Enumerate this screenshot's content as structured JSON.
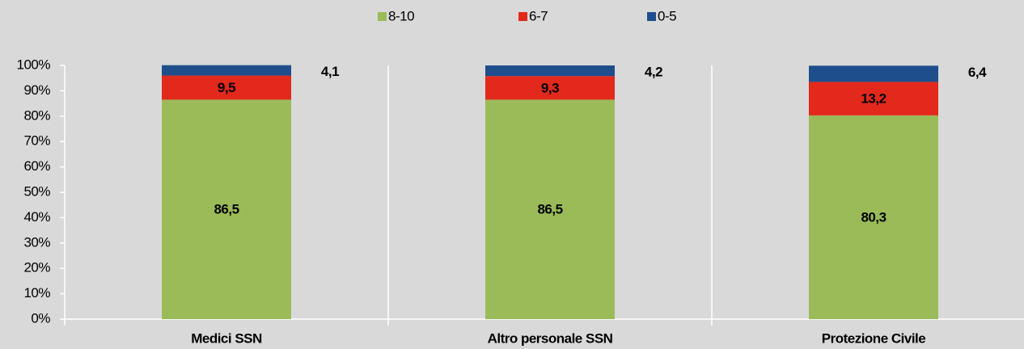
{
  "chart_data": {
    "type": "stacked_bar",
    "categories": [
      "Medici SSN",
      "Altro personale SSN",
      "Protezione Civile"
    ],
    "series": [
      {
        "name": "8-10",
        "color": "#9bbb59",
        "values": [
          86.5,
          86.5,
          80.3
        ],
        "value_labels": [
          "86,5",
          "86,5",
          "80,3"
        ]
      },
      {
        "name": "6-7",
        "color": "#e2291c",
        "values": [
          9.5,
          9.3,
          13.2
        ],
        "value_labels": [
          "9,5",
          "9,3",
          "13,2"
        ]
      },
      {
        "name": "0-5",
        "color": "#1f4e8c",
        "values": [
          4.1,
          4.2,
          6.4
        ],
        "value_labels": [
          "4,1",
          "4,2",
          "6,4"
        ]
      }
    ],
    "ylim": [
      0,
      100
    ],
    "yticks": [
      {
        "value": 0,
        "label": "0%"
      },
      {
        "value": 10,
        "label": "10%"
      },
      {
        "value": 20,
        "label": "20%"
      },
      {
        "value": 30,
        "label": "30%"
      },
      {
        "value": 40,
        "label": "40%"
      },
      {
        "value": 50,
        "label": "50%"
      },
      {
        "value": 60,
        "label": "60%"
      },
      {
        "value": 70,
        "label": "70%"
      },
      {
        "value": 80,
        "label": "80%"
      },
      {
        "value": 90,
        "label": "90%"
      },
      {
        "value": 100,
        "label": "100%"
      }
    ],
    "legend": "top"
  }
}
